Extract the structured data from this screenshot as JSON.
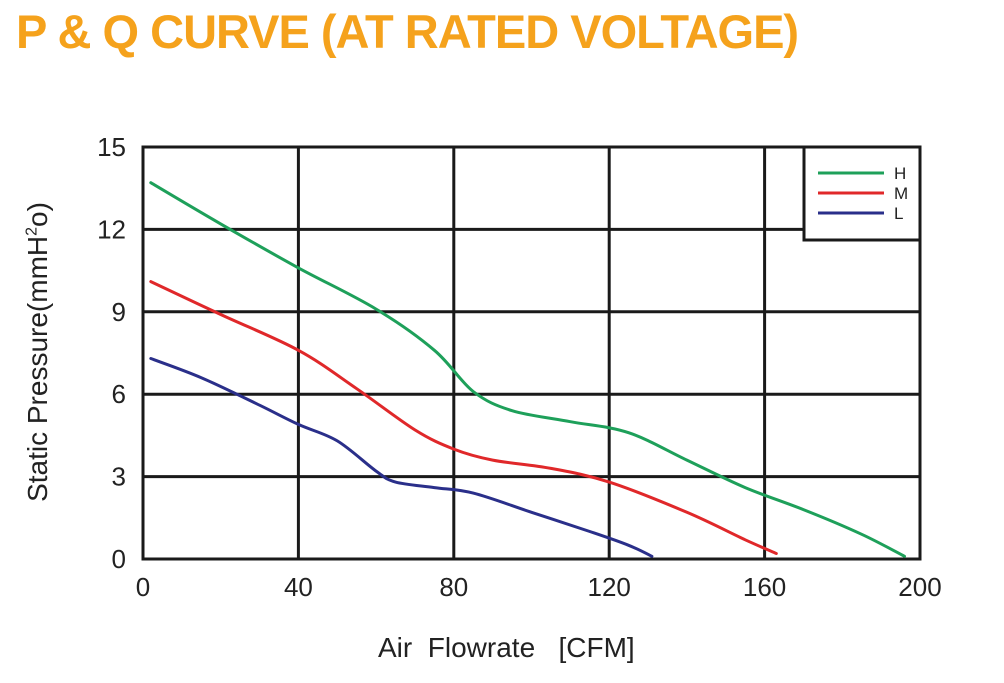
{
  "title": "P & Q CURVE (AT RATED VOLTAGE)",
  "colors": {
    "title": "#f5a21c",
    "grid": "#1a1a1a",
    "text": "#222222"
  },
  "chart_data": {
    "type": "line",
    "xlabel": "Air  Flowrate   [CFM]",
    "ylabel_main": "Static Pressure(mmH",
    "ylabel_sup": "2",
    "ylabel_tail": "o)",
    "xlim": [
      0,
      200
    ],
    "ylim": [
      0,
      15
    ],
    "xticks": [
      0,
      40,
      80,
      120,
      160,
      200
    ],
    "yticks": [
      0,
      3,
      6,
      9,
      12,
      15
    ],
    "grid": true,
    "legend_position": "top-right",
    "series": [
      {
        "name": "H",
        "color": "#1ea05a",
        "x": [
          2,
          20,
          40,
          60,
          75,
          85,
          95,
          110,
          125,
          140,
          155,
          170,
          185,
          196
        ],
        "y": [
          13.7,
          12.2,
          10.6,
          9.1,
          7.6,
          6.1,
          5.4,
          5.0,
          4.6,
          3.6,
          2.6,
          1.8,
          0.9,
          0.1
        ]
      },
      {
        "name": "M",
        "color": "#e0282a",
        "x": [
          2,
          20,
          40,
          55,
          70,
          80,
          90,
          105,
          120,
          140,
          155,
          163
        ],
        "y": [
          10.1,
          8.9,
          7.6,
          6.2,
          4.7,
          4.0,
          3.6,
          3.3,
          2.8,
          1.7,
          0.7,
          0.2
        ]
      },
      {
        "name": "L",
        "color": "#2a2f8a",
        "x": [
          2,
          15,
          30,
          40,
          50,
          60,
          65,
          75,
          85,
          100,
          115,
          125,
          131
        ],
        "y": [
          7.3,
          6.6,
          5.6,
          4.9,
          4.3,
          3.2,
          2.8,
          2.6,
          2.4,
          1.7,
          1.0,
          0.5,
          0.1
        ]
      }
    ]
  }
}
